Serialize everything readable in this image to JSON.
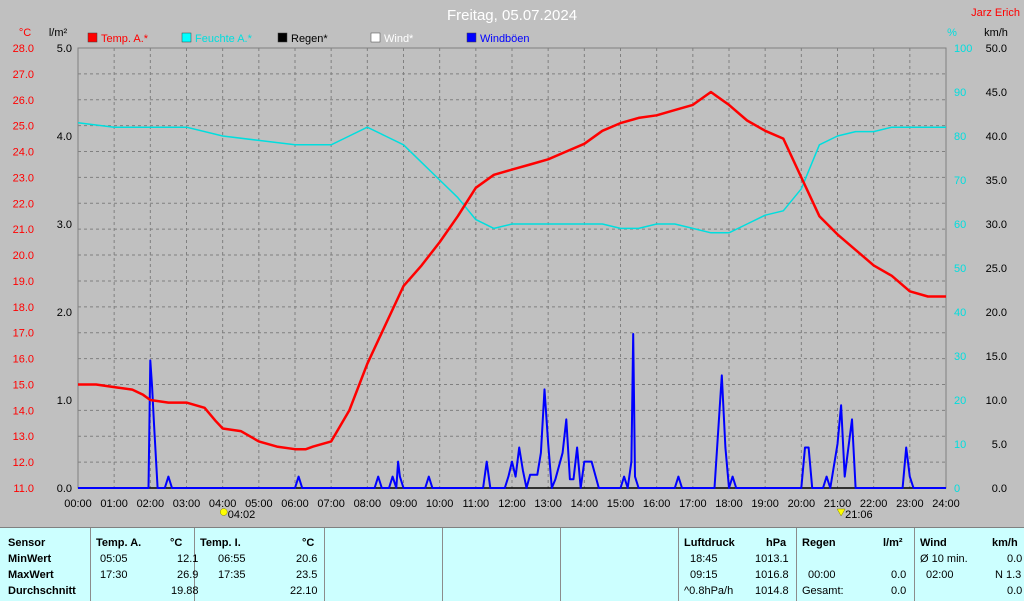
{
  "chart_data": {
    "type": "line",
    "title": "Freitag, 05.07.2024",
    "author": "Jarz Erich",
    "legend": [
      {
        "name": "Temp. A.*",
        "color": "#ff0000"
      },
      {
        "name": "Feuchte A.*",
        "color": "#00ffff"
      },
      {
        "name": "Regen*",
        "color": "#000000"
      },
      {
        "name": "Wind*",
        "color": "#ffffff"
      },
      {
        "name": "Windböen",
        "color": "#0000ff"
      }
    ],
    "legend_position": "top-left",
    "grid": true,
    "axes": {
      "temp_unit": "°C",
      "rain_unit": "l/m²",
      "humidity_unit": "%",
      "wind_unit": "km/h",
      "temp_ticks": [
        "28.0",
        "27.0",
        "26.0",
        "25.0",
        "24.0",
        "23.0",
        "22.0",
        "21.0",
        "20.0",
        "19.0",
        "18.0",
        "17.0",
        "16.0",
        "15.0",
        "14.0",
        "13.0",
        "12.0",
        "11.0"
      ],
      "rain_ticks": [
        "5.0",
        "4.0",
        "3.0",
        "2.0",
        "1.0",
        "0.0"
      ],
      "humidity_ticks": [
        "100",
        "90",
        "80",
        "70",
        "60",
        "50",
        "40",
        "30",
        "20",
        "10",
        "0"
      ],
      "wind_ticks": [
        "50.0",
        "45.0",
        "40.0",
        "35.0",
        "30.0",
        "25.0",
        "20.0",
        "15.0",
        "10.0",
        "5.0",
        "0.0"
      ],
      "x_ticks": [
        "00:00",
        "01:00",
        "02:00",
        "03:00",
        "04:00",
        "05:00",
        "06:00",
        "07:00",
        "08:00",
        "09:00",
        "10:00",
        "11:00",
        "12:00",
        "13:00",
        "14:00",
        "15:00",
        "16:00",
        "17:00",
        "18:00",
        "19:00",
        "20:00",
        "21:00",
        "22:00",
        "23:00",
        "24:00"
      ],
      "temp_range": [
        11,
        28
      ],
      "rain_range": [
        0,
        5
      ],
      "humidity_range": [
        0,
        100
      ],
      "wind_range": [
        0,
        50
      ],
      "x_range": [
        0,
        24
      ]
    },
    "sunrise_label": "04:02",
    "sunset_label": "21:06",
    "sunrise_hour": 4.03,
    "sunset_hour": 21.1,
    "series": [
      {
        "name": "Temp. A.*",
        "unit": "°C",
        "points": [
          [
            0,
            15.0
          ],
          [
            0.5,
            15.0
          ],
          [
            1,
            14.9
          ],
          [
            1.5,
            14.8
          ],
          [
            1.8,
            14.6
          ],
          [
            2,
            14.4
          ],
          [
            2.5,
            14.3
          ],
          [
            3,
            14.3
          ],
          [
            3.5,
            14.1
          ],
          [
            3.8,
            13.6
          ],
          [
            4,
            13.3
          ],
          [
            4.5,
            13.2
          ],
          [
            5,
            12.8
          ],
          [
            5.5,
            12.6
          ],
          [
            6,
            12.5
          ],
          [
            6.3,
            12.5
          ],
          [
            6.5,
            12.6
          ],
          [
            7,
            12.8
          ],
          [
            7.5,
            14.0
          ],
          [
            8,
            15.8
          ],
          [
            8.5,
            17.3
          ],
          [
            9,
            18.8
          ],
          [
            9.5,
            19.6
          ],
          [
            10,
            20.5
          ],
          [
            10.5,
            21.5
          ],
          [
            11,
            22.6
          ],
          [
            11.5,
            23.1
          ],
          [
            12,
            23.3
          ],
          [
            12.5,
            23.5
          ],
          [
            13,
            23.7
          ],
          [
            13.5,
            24.0
          ],
          [
            14,
            24.3
          ],
          [
            14.5,
            24.8
          ],
          [
            15,
            25.1
          ],
          [
            15.5,
            25.3
          ],
          [
            16,
            25.4
          ],
          [
            16.5,
            25.6
          ],
          [
            17,
            25.8
          ],
          [
            17.5,
            26.3
          ],
          [
            17.7,
            26.1
          ],
          [
            18,
            25.8
          ],
          [
            18.5,
            25.2
          ],
          [
            19,
            24.8
          ],
          [
            19.5,
            24.5
          ],
          [
            20,
            23.0
          ],
          [
            20.5,
            21.5
          ],
          [
            21,
            20.8
          ],
          [
            21.5,
            20.2
          ],
          [
            22,
            19.6
          ],
          [
            22.5,
            19.2
          ],
          [
            23,
            18.6
          ],
          [
            23.5,
            18.4
          ],
          [
            24,
            18.4
          ]
        ]
      },
      {
        "name": "Feuchte A.*",
        "unit": "%",
        "points": [
          [
            0,
            83
          ],
          [
            1,
            82
          ],
          [
            2,
            82
          ],
          [
            3,
            82
          ],
          [
            4,
            80
          ],
          [
            5,
            79
          ],
          [
            6,
            78
          ],
          [
            7,
            78
          ],
          [
            7.5,
            80
          ],
          [
            8,
            82
          ],
          [
            8.5,
            80
          ],
          [
            9,
            78
          ],
          [
            9.5,
            74
          ],
          [
            10,
            70
          ],
          [
            10.5,
            66
          ],
          [
            11,
            61
          ],
          [
            11.5,
            59
          ],
          [
            12,
            60
          ],
          [
            12.5,
            60
          ],
          [
            13,
            60
          ],
          [
            13.5,
            60
          ],
          [
            14,
            60
          ],
          [
            14.5,
            60
          ],
          [
            15,
            59
          ],
          [
            15.5,
            59
          ],
          [
            16,
            60
          ],
          [
            16.5,
            60
          ],
          [
            17,
            59
          ],
          [
            17.5,
            58
          ],
          [
            18,
            58
          ],
          [
            18.5,
            60
          ],
          [
            19,
            62
          ],
          [
            19.5,
            63
          ],
          [
            20,
            68
          ],
          [
            20.5,
            78
          ],
          [
            21,
            80
          ],
          [
            21.5,
            81
          ],
          [
            22,
            81
          ],
          [
            22.5,
            82
          ],
          [
            23,
            82
          ],
          [
            23.5,
            82
          ],
          [
            24,
            82
          ]
        ]
      },
      {
        "name": "Regen*",
        "unit": "l/m²",
        "points": [
          [
            0,
            0
          ],
          [
            24,
            0
          ]
        ]
      },
      {
        "name": "Windböen",
        "unit": "km/h",
        "points": [
          [
            0,
            0
          ],
          [
            1.95,
            0
          ],
          [
            2.0,
            14.5
          ],
          [
            2.05,
            11.5
          ],
          [
            2.1,
            7.5
          ],
          [
            2.2,
            0
          ],
          [
            2.4,
            0
          ],
          [
            2.5,
            1.3
          ],
          [
            2.6,
            0
          ],
          [
            6.0,
            0
          ],
          [
            6.1,
            1.3
          ],
          [
            6.2,
            0
          ],
          [
            8.2,
            0
          ],
          [
            8.3,
            1.3
          ],
          [
            8.4,
            0
          ],
          [
            8.6,
            0
          ],
          [
            8.7,
            1.3
          ],
          [
            8.8,
            0
          ],
          [
            8.85,
            3.0
          ],
          [
            8.9,
            1.3
          ],
          [
            9.0,
            0
          ],
          [
            9.6,
            0
          ],
          [
            9.7,
            1.3
          ],
          [
            9.8,
            0
          ],
          [
            11.2,
            0
          ],
          [
            11.3,
            3.0
          ],
          [
            11.4,
            0
          ],
          [
            11.8,
            0
          ],
          [
            11.9,
            1.3
          ],
          [
            12.0,
            3.0
          ],
          [
            12.1,
            1.3
          ],
          [
            12.2,
            4.6
          ],
          [
            12.3,
            2.0
          ],
          [
            12.4,
            0
          ],
          [
            12.5,
            1.5
          ],
          [
            12.7,
            1.5
          ],
          [
            12.8,
            4.0
          ],
          [
            12.9,
            11.2
          ],
          [
            13.0,
            5.0
          ],
          [
            13.1,
            0
          ],
          [
            13.2,
            1.0
          ],
          [
            13.4,
            4.0
          ],
          [
            13.5,
            7.8
          ],
          [
            13.6,
            1.0
          ],
          [
            13.7,
            1.0
          ],
          [
            13.8,
            4.6
          ],
          [
            13.9,
            0
          ],
          [
            14.0,
            3.0
          ],
          [
            14.2,
            3.0
          ],
          [
            14.4,
            0
          ],
          [
            15.0,
            0
          ],
          [
            15.1,
            1.3
          ],
          [
            15.2,
            0
          ],
          [
            15.3,
            3.0
          ],
          [
            15.35,
            17.5
          ],
          [
            15.4,
            1.3
          ],
          [
            15.5,
            0
          ],
          [
            16.5,
            0
          ],
          [
            16.6,
            1.3
          ],
          [
            16.7,
            0
          ],
          [
            17.6,
            0
          ],
          [
            17.8,
            12.8
          ],
          [
            17.9,
            4.6
          ],
          [
            18.0,
            0
          ],
          [
            18.1,
            1.3
          ],
          [
            18.2,
            0
          ],
          [
            20.0,
            0
          ],
          [
            20.1,
            4.6
          ],
          [
            20.2,
            4.6
          ],
          [
            20.3,
            0
          ],
          [
            20.6,
            0
          ],
          [
            20.7,
            1.3
          ],
          [
            20.8,
            0
          ],
          [
            21.0,
            5.0
          ],
          [
            21.1,
            9.4
          ],
          [
            21.2,
            1.3
          ],
          [
            21.3,
            4.6
          ],
          [
            21.4,
            7.8
          ],
          [
            21.5,
            0
          ],
          [
            22.8,
            0
          ],
          [
            22.9,
            4.6
          ],
          [
            23.0,
            1.3
          ],
          [
            23.1,
            0
          ],
          [
            24,
            0
          ]
        ]
      }
    ]
  },
  "table": {
    "sensor_col": {
      "header": "Sensor",
      "rows": [
        "MinWert",
        "MaxWert",
        "Durchschnitt"
      ]
    },
    "temp_a": {
      "header": "Temp. A.",
      "unit": "°C",
      "times": [
        "05:05",
        "17:30",
        ""
      ],
      "values": [
        "12.1",
        "26.9",
        "19.88"
      ]
    },
    "temp_i": {
      "header": "Temp. I.",
      "unit": "°C",
      "times": [
        "06:55",
        "17:35",
        ""
      ],
      "values": [
        "20.6",
        "23.5",
        "22.10"
      ]
    },
    "pressure": {
      "header": "Luftdruck",
      "unit": "hPa",
      "times": [
        "18:45",
        "09:15",
        "^0.8hPa/h"
      ],
      "values": [
        "1013.1",
        "1016.8",
        "1014.8"
      ]
    },
    "rain": {
      "header": "Regen",
      "unit": "l/m²",
      "times": [
        "",
        "00:00",
        "Gesamt:"
      ],
      "values": [
        "",
        "0.0",
        "0.0"
      ]
    },
    "wind": {
      "header": "Wind",
      "unit": "km/h",
      "times": [
        "Ø 10 min.",
        "02:00",
        ""
      ],
      "values": [
        "0.0",
        "N 1.3",
        "0.0"
      ]
    }
  }
}
